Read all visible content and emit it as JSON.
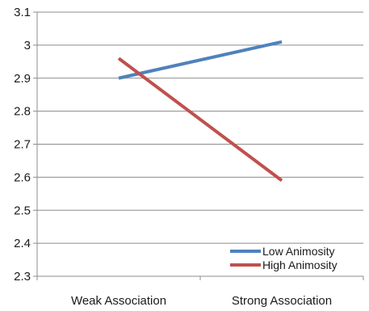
{
  "chart_data": {
    "type": "line",
    "categories": [
      "Weak Association",
      "Strong Association"
    ],
    "series": [
      {
        "name": "Low Animosity",
        "values": [
          2.9,
          3.01
        ],
        "color": "#4F81BD"
      },
      {
        "name": "High Animosity",
        "values": [
          2.96,
          2.59
        ],
        "color": "#C0504D"
      }
    ],
    "ylim": [
      2.3,
      3.1
    ],
    "yticks": [
      "2.3",
      "2.4",
      "2.5",
      "2.6",
      "2.7",
      "2.8",
      "2.9",
      "3",
      "3.1"
    ],
    "grid": true,
    "legend": "bottom-right",
    "title": "",
    "xlabel": "",
    "ylabel": ""
  }
}
